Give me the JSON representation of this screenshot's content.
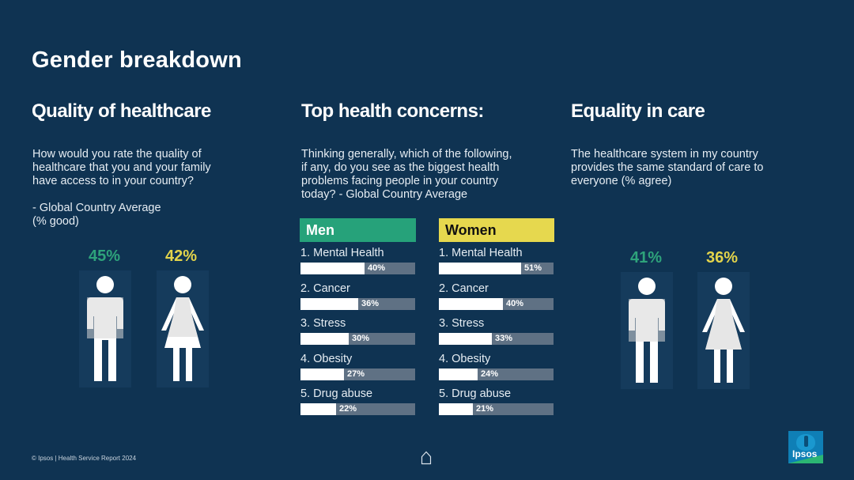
{
  "page_title": "Gender breakdown",
  "col1": {
    "title": "Quality of healthcare",
    "desc_lines": [
      "How would you rate the quality of",
      "healthcare that you and your family",
      "have access to in your country?"
    ],
    "note_lines": [
      "- Global Country Average",
      "(% good)"
    ],
    "men_pct": "45%",
    "women_pct": "42%"
  },
  "col2": {
    "title": "Top health concerns:",
    "desc_lines": [
      "Thinking generally, which of the following,",
      "if any, do you see as the biggest health",
      "problems facing people in your country",
      "today? - Global Country Average"
    ]
  },
  "col3": {
    "title": "Equality in care",
    "desc_lines": [
      "The healthcare system in my country",
      "provides the same standard of care to",
      "everyone (% agree)"
    ],
    "men_pct": "41%",
    "women_pct": "36%"
  },
  "colors": {
    "background": "#0f3352",
    "men_accent": "#2ea37b",
    "women_accent": "#e3d44b",
    "men_header": "#26a27a",
    "women_header": "#e6d84e"
  },
  "icons": {
    "man": "man-figure-icon",
    "woman": "woman-figure-icon",
    "home": "home-icon",
    "logo": "ipsos-logo"
  },
  "chart_data": [
    {
      "type": "bar",
      "name": "Men",
      "categories": [
        "1. Mental Health",
        "2. Cancer",
        "3. Stress",
        "4. Obesity",
        "5. Drug abuse"
      ],
      "values": [
        40,
        36,
        30,
        27,
        22
      ],
      "labels": [
        "40%",
        "36%",
        "30%",
        "27%",
        "22%"
      ],
      "xlim": [
        0,
        100
      ]
    },
    {
      "type": "bar",
      "name": "Women",
      "categories": [
        "1. Mental Health",
        "2. Cancer",
        "3. Stress",
        "4. Obesity",
        "5. Drug abuse"
      ],
      "values": [
        51,
        40,
        33,
        24,
        21
      ],
      "labels": [
        "51%",
        "40%",
        "33%",
        "24%",
        "21%"
      ],
      "xlim": [
        0,
        100
      ]
    }
  ],
  "footer": "© Ipsos | Health Service Report 2024",
  "logo_text": "Ipsos"
}
